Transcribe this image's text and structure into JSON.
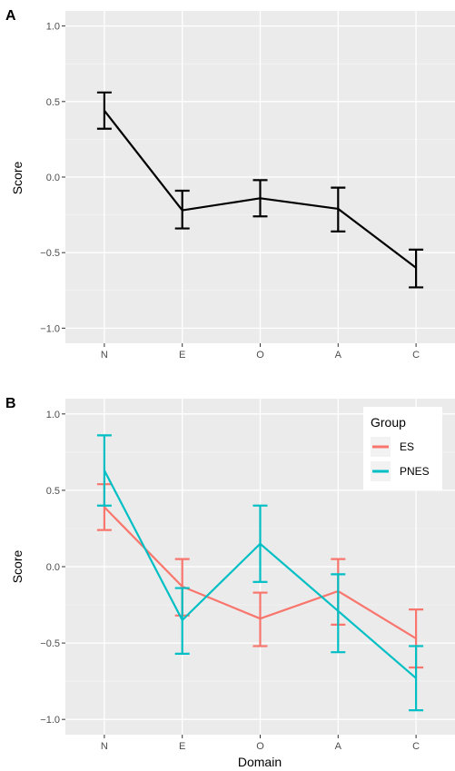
{
  "chart_data": [
    {
      "type": "line",
      "panel_tag": "A",
      "categories": [
        "N",
        "E",
        "O",
        "A",
        "C"
      ],
      "ylabel": "Score",
      "xlabel": "",
      "ylim": [
        -1.1,
        1.1
      ],
      "yticks": [
        -1.0,
        -0.5,
        0.0,
        0.5,
        1.0
      ],
      "ytick_labels": [
        "−1.0",
        "−0.5",
        "0.0",
        "0.5",
        "1.0"
      ],
      "grid": true,
      "series": [
        {
          "color": "#000000",
          "values": [
            0.44,
            -0.22,
            -0.14,
            -0.21,
            -0.6
          ],
          "err_low": [
            0.32,
            -0.34,
            -0.26,
            -0.36,
            -0.73
          ],
          "err_high": [
            0.56,
            -0.09,
            -0.02,
            -0.07,
            -0.48
          ]
        }
      ]
    },
    {
      "type": "line",
      "panel_tag": "B",
      "categories": [
        "N",
        "E",
        "O",
        "A",
        "C"
      ],
      "ylabel": "Score",
      "xlabel": "Domain",
      "ylim": [
        -1.1,
        1.1
      ],
      "yticks": [
        -1.0,
        -0.5,
        0.0,
        0.5,
        1.0
      ],
      "ytick_labels": [
        "−1.0",
        "−0.5",
        "0.0",
        "0.5",
        "1.0"
      ],
      "grid": true,
      "legend": {
        "title": "Group",
        "placement": "top-right"
      },
      "series": [
        {
          "name": "ES",
          "color": "#F8766D",
          "values": [
            0.39,
            -0.13,
            -0.34,
            -0.16,
            -0.47
          ],
          "err_low": [
            0.24,
            -0.32,
            -0.52,
            -0.38,
            -0.66
          ],
          "err_high": [
            0.54,
            0.05,
            -0.17,
            0.05,
            -0.28
          ]
        },
        {
          "name": "PNES",
          "color": "#00BFC4",
          "values": [
            0.63,
            -0.35,
            0.15,
            -0.29,
            -0.73
          ],
          "err_low": [
            0.4,
            -0.57,
            -0.1,
            -0.56,
            -0.94
          ],
          "err_high": [
            0.86,
            -0.14,
            0.4,
            -0.05,
            -0.52
          ]
        }
      ]
    }
  ]
}
